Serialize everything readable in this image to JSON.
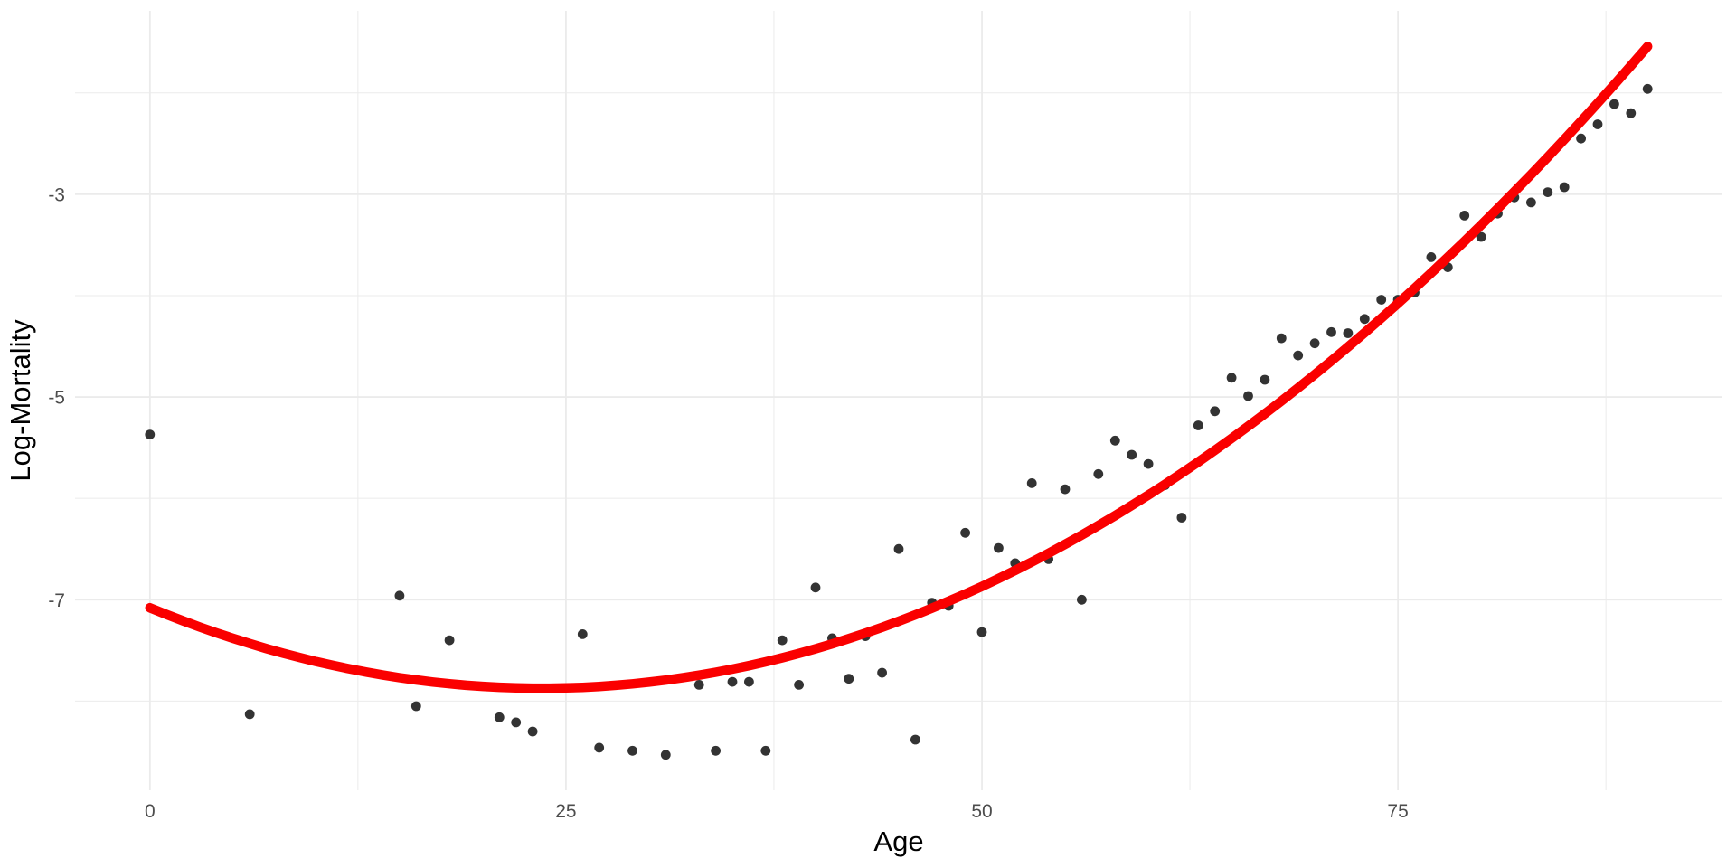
{
  "chart_data": {
    "type": "scatter",
    "title": "",
    "xlabel": "Age",
    "ylabel": "Log-Mortality",
    "legend": "none",
    "grid": "on",
    "xlim": [
      -4.5,
      94.5
    ],
    "ylim": [
      -8.88,
      -1.19
    ],
    "x_major_ticks": [
      0,
      25,
      50,
      75
    ],
    "x_tick_labels": [
      "0",
      "25",
      "50",
      "75"
    ],
    "x_minor_ticks": [
      12.5,
      37.5,
      62.5,
      87.5
    ],
    "y_major_ticks": [
      -3,
      -5,
      -7
    ],
    "y_tick_labels": [
      "-3",
      "-5",
      "-7"
    ],
    "y_minor_ticks": [
      -2,
      -4,
      -6,
      -8
    ],
    "points": [
      [
        0,
        -5.37
      ],
      [
        6,
        -8.13
      ],
      [
        15,
        -6.96
      ],
      [
        16,
        -8.05
      ],
      [
        18,
        -7.4
      ],
      [
        21,
        -8.16
      ],
      [
        22,
        -8.21
      ],
      [
        23,
        -8.3
      ],
      [
        26,
        -7.34
      ],
      [
        27,
        -8.46
      ],
      [
        29,
        -8.49
      ],
      [
        31,
        -8.53
      ],
      [
        33,
        -7.84
      ],
      [
        34,
        -8.49
      ],
      [
        35,
        -7.81
      ],
      [
        36,
        -7.81
      ],
      [
        37,
        -8.49
      ],
      [
        38,
        -7.4
      ],
      [
        39,
        -7.84
      ],
      [
        40,
        -6.88
      ],
      [
        41,
        -7.38
      ],
      [
        42,
        -7.78
      ],
      [
        43,
        -7.36
      ],
      [
        44,
        -7.72
      ],
      [
        45,
        -6.5
      ],
      [
        46,
        -8.38
      ],
      [
        47,
        -7.03
      ],
      [
        48,
        -7.06
      ],
      [
        49,
        -6.34
      ],
      [
        50,
        -7.32
      ],
      [
        51,
        -6.49
      ],
      [
        52,
        -6.64
      ],
      [
        53,
        -5.85
      ],
      [
        54,
        -6.6
      ],
      [
        55,
        -5.91
      ],
      [
        56,
        -7.0
      ],
      [
        57,
        -5.76
      ],
      [
        58,
        -5.43
      ],
      [
        59,
        -5.57
      ],
      [
        60,
        -5.66
      ],
      [
        61,
        -5.87
      ],
      [
        62,
        -6.19
      ],
      [
        63,
        -5.28
      ],
      [
        64,
        -5.14
      ],
      [
        65,
        -4.81
      ],
      [
        66,
        -4.99
      ],
      [
        67,
        -4.83
      ],
      [
        68,
        -4.42
      ],
      [
        69,
        -4.59
      ],
      [
        70,
        -4.47
      ],
      [
        71,
        -4.36
      ],
      [
        72,
        -4.37
      ],
      [
        73,
        -4.23
      ],
      [
        74,
        -4.04
      ],
      [
        75,
        -4.04
      ],
      [
        76,
        -3.97
      ],
      [
        77,
        -3.62
      ],
      [
        78,
        -3.72
      ],
      [
        79,
        -3.21
      ],
      [
        80,
        -3.42
      ],
      [
        81,
        -3.19
      ],
      [
        82,
        -3.03
      ],
      [
        83,
        -3.08
      ],
      [
        84,
        -2.98
      ],
      [
        85,
        -2.93
      ],
      [
        86,
        -2.45
      ],
      [
        87,
        -2.31
      ],
      [
        88,
        -2.11
      ],
      [
        89,
        -2.2
      ],
      [
        90,
        -1.96
      ]
    ],
    "smooth_curve": {
      "model": "quadratic",
      "coefficients": {
        "a": 0.001433,
        "b": -0.06743,
        "c": -7.08
      },
      "domain": [
        0,
        90
      ]
    },
    "colors": {
      "background": "#ffffff",
      "gridline": "#ebebeb",
      "point": "#333333",
      "curve": "#fa0000",
      "tick_label": "#4d4d4d",
      "axis_title": "#000000"
    }
  }
}
